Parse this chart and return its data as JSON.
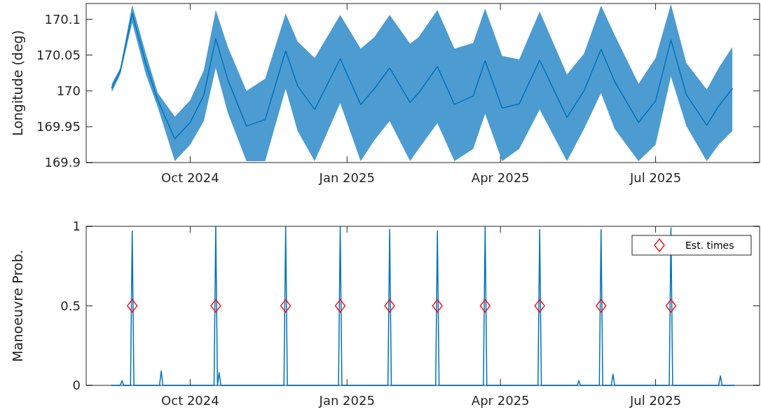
{
  "chart_data": [
    {
      "type": "line",
      "ylabel": "Longitude (deg)",
      "grid": false,
      "legend": false,
      "x": [
        "2024-08-16",
        "2024-08-21",
        "2024-08-28",
        "2024-09-05",
        "2024-09-12",
        "2024-09-22",
        "2024-10-01",
        "2024-10-09",
        "2024-10-16",
        "2024-10-23",
        "2024-11-03",
        "2024-11-14",
        "2024-11-26",
        "2024-12-03",
        "2024-12-13",
        "2024-12-28",
        "2025-01-09",
        "2025-01-17",
        "2025-01-26",
        "2025-02-07",
        "2025-02-12",
        "2025-02-23",
        "2025-03-05",
        "2025-03-16",
        "2025-03-23",
        "2025-04-02",
        "2025-04-12",
        "2025-04-24",
        "2025-05-10",
        "2025-05-20",
        "2025-05-30",
        "2025-06-07",
        "2025-06-21",
        "2025-07-01",
        "2025-07-10",
        "2025-07-19",
        "2025-07-31",
        "2025-08-07",
        "2025-08-15"
      ],
      "series": [
        {
          "color": "#0072bd",
          "marker": "none",
          "line_style": "solid",
          "values": [
            170.004,
            170.028,
            170.108,
            170.038,
            169.987,
            169.933,
            169.956,
            169.994,
            170.073,
            170.016,
            169.951,
            169.96,
            170.056,
            170.007,
            169.974,
            170.045,
            169.981,
            170.003,
            170.032,
            169.984,
            169.997,
            170.034,
            169.981,
            169.993,
            170.042,
            169.976,
            169.982,
            170.043,
            169.963,
            170.0,
            170.058,
            170.013,
            169.956,
            169.986,
            170.071,
            169.995,
            169.952,
            169.979,
            170.003
          ],
          "lower": [
            169.998,
            170.023,
            170.095,
            170.023,
            169.977,
            169.902,
            169.925,
            169.958,
            170.032,
            169.97,
            169.902,
            169.902,
            170.003,
            169.944,
            169.902,
            169.983,
            169.902,
            169.931,
            169.958,
            169.902,
            169.919,
            169.955,
            169.902,
            169.919,
            169.968,
            169.902,
            169.919,
            169.974,
            169.902,
            169.947,
            169.997,
            169.947,
            169.902,
            169.925,
            170.02,
            169.951,
            169.902,
            169.925,
            169.944
          ],
          "upper": [
            170.01,
            170.032,
            170.12,
            170.052,
            169.997,
            169.964,
            169.987,
            170.029,
            170.113,
            170.062,
            170.0,
            170.017,
            170.108,
            170.069,
            170.046,
            170.106,
            170.059,
            170.075,
            170.106,
            170.066,
            170.075,
            170.113,
            170.059,
            170.067,
            170.115,
            170.049,
            170.044,
            170.111,
            170.023,
            170.052,
            170.119,
            170.078,
            170.01,
            170.046,
            170.121,
            170.039,
            170.002,
            170.032,
            170.061
          ]
        }
      ],
      "xlim": [
        "2024-08-01",
        "2025-08-31"
      ],
      "xticks": [
        {
          "value": "2024-10-01",
          "label": "Oct 2024"
        },
        {
          "value": "2025-01-01",
          "label": "Jan 2025"
        },
        {
          "value": "2025-04-01",
          "label": "Apr 2025"
        },
        {
          "value": "2025-07-01",
          "label": "Jul 2025"
        }
      ],
      "ylim": [
        169.9,
        170.122
      ],
      "yticks": [
        169.9,
        169.95,
        170,
        170.05,
        170.1
      ]
    },
    {
      "type": "line",
      "ylabel": "Manoeuvre Prob.",
      "grid": false,
      "legend": "top right",
      "series": [
        {
          "color": "#0072bd",
          "marker": "none",
          "line_style": "solid",
          "x": [
            "2024-08-16",
            "2024-08-21",
            "2024-08-22",
            "2024-08-23",
            "2024-08-27",
            "2024-08-28",
            "2024-08-29",
            "2024-09-13",
            "2024-09-14",
            "2024-09-15",
            "2024-10-15",
            "2024-10-16",
            "2024-10-17",
            "2024-10-18",
            "2024-10-19",
            "2024-11-25",
            "2024-11-26",
            "2024-11-27",
            "2024-12-27",
            "2024-12-28",
            "2024-12-29",
            "2025-01-25",
            "2025-01-26",
            "2025-01-27",
            "2025-02-22",
            "2025-02-23",
            "2025-02-24",
            "2025-03-22",
            "2025-03-23",
            "2025-03-24",
            "2025-04-23",
            "2025-04-24",
            "2025-04-25",
            "2025-05-16",
            "2025-05-17",
            "2025-05-18",
            "2025-05-29",
            "2025-05-30",
            "2025-05-31",
            "2025-06-05",
            "2025-06-06",
            "2025-06-07",
            "2025-07-09",
            "2025-07-10",
            "2025-07-11",
            "2025-08-07",
            "2025-08-08",
            "2025-08-09",
            "2025-08-16"
          ],
          "values": [
            0,
            0,
            0.03,
            0,
            0,
            0.97,
            0,
            0,
            0.09,
            0,
            0,
            1,
            0,
            0.08,
            0,
            0,
            1,
            0,
            0,
            1,
            0,
            0,
            0.98,
            0,
            0,
            0.97,
            0,
            0,
            1,
            0,
            0,
            0.98,
            0,
            0,
            0.03,
            0,
            0,
            0.98,
            0,
            0,
            0.07,
            0,
            0,
            0.99,
            0,
            0,
            0.06,
            0,
            0
          ]
        },
        {
          "type": "scatter",
          "name": "Est. times",
          "color": "#ff0000",
          "marker": "diamond",
          "x": [
            "2024-08-28",
            "2024-10-16",
            "2024-11-26",
            "2024-12-28",
            "2025-01-26",
            "2025-02-23",
            "2025-03-23",
            "2025-04-24",
            "2025-05-30",
            "2025-07-10"
          ],
          "values": [
            0.5,
            0.5,
            0.5,
            0.5,
            0.5,
            0.5,
            0.5,
            0.5,
            0.5,
            0.5
          ]
        }
      ],
      "xlim": [
        "2024-08-01",
        "2025-08-31"
      ],
      "xticks": [
        {
          "value": "2024-10-01",
          "label": "Oct 2024"
        },
        {
          "value": "2025-01-01",
          "label": "Jan 2025"
        },
        {
          "value": "2025-04-01",
          "label": "Apr 2025"
        },
        {
          "value": "2025-07-01",
          "label": "Jul 2025"
        }
      ],
      "ylim": [
        0,
        1
      ],
      "yticks": [
        0,
        0.5,
        1
      ]
    }
  ]
}
